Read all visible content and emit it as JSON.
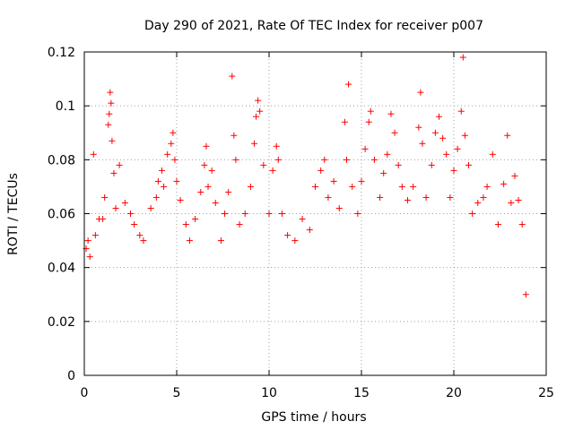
{
  "chart_data": {
    "type": "scatter",
    "title": "Day 290 of 2021, Rate Of TEC Index for receiver p007",
    "xlabel": "GPS time / hours",
    "ylabel": "ROTI / TECUs",
    "xlim": [
      0,
      25
    ],
    "ylim": [
      0,
      0.12
    ],
    "xticks": [
      "0",
      "5",
      "10",
      "15",
      "20",
      "25"
    ],
    "yticks": [
      "0",
      "0.02",
      "0.04",
      "0.06",
      "0.08",
      "0.1",
      "0.12"
    ],
    "grid": true,
    "marker": "+",
    "color": "#ff0000",
    "series": [
      {
        "name": "",
        "points": [
          [
            0.1,
            0.047
          ],
          [
            0.2,
            0.05
          ],
          [
            0.3,
            0.044
          ],
          [
            0.5,
            0.082
          ],
          [
            0.6,
            0.052
          ],
          [
            0.8,
            0.058
          ],
          [
            1.0,
            0.058
          ],
          [
            1.1,
            0.066
          ],
          [
            1.3,
            0.093
          ],
          [
            1.35,
            0.097
          ],
          [
            1.4,
            0.105
          ],
          [
            1.45,
            0.101
          ],
          [
            1.5,
            0.087
          ],
          [
            1.6,
            0.075
          ],
          [
            1.7,
            0.062
          ],
          [
            1.9,
            0.078
          ],
          [
            2.2,
            0.064
          ],
          [
            2.5,
            0.06
          ],
          [
            2.7,
            0.056
          ],
          [
            3.0,
            0.052
          ],
          [
            3.2,
            0.05
          ],
          [
            3.6,
            0.062
          ],
          [
            3.9,
            0.066
          ],
          [
            4.0,
            0.072
          ],
          [
            4.2,
            0.076
          ],
          [
            4.3,
            0.07
          ],
          [
            4.5,
            0.082
          ],
          [
            4.7,
            0.086
          ],
          [
            4.8,
            0.09
          ],
          [
            4.9,
            0.08
          ],
          [
            5.0,
            0.072
          ],
          [
            5.2,
            0.065
          ],
          [
            5.5,
            0.056
          ],
          [
            5.7,
            0.05
          ],
          [
            6.0,
            0.058
          ],
          [
            6.3,
            0.068
          ],
          [
            6.5,
            0.078
          ],
          [
            6.6,
            0.085
          ],
          [
            6.7,
            0.07
          ],
          [
            6.9,
            0.076
          ],
          [
            7.1,
            0.064
          ],
          [
            7.4,
            0.05
          ],
          [
            7.6,
            0.06
          ],
          [
            7.8,
            0.068
          ],
          [
            8.0,
            0.111
          ],
          [
            8.1,
            0.089
          ],
          [
            8.2,
            0.08
          ],
          [
            8.4,
            0.056
          ],
          [
            8.7,
            0.06
          ],
          [
            9.0,
            0.07
          ],
          [
            9.2,
            0.086
          ],
          [
            9.3,
            0.096
          ],
          [
            9.4,
            0.102
          ],
          [
            9.5,
            0.098
          ],
          [
            9.7,
            0.078
          ],
          [
            10.0,
            0.06
          ],
          [
            10.2,
            0.076
          ],
          [
            10.4,
            0.085
          ],
          [
            10.5,
            0.08
          ],
          [
            10.7,
            0.06
          ],
          [
            11.0,
            0.052
          ],
          [
            11.4,
            0.05
          ],
          [
            11.8,
            0.058
          ],
          [
            12.2,
            0.054
          ],
          [
            12.5,
            0.07
          ],
          [
            12.8,
            0.076
          ],
          [
            13.0,
            0.08
          ],
          [
            13.2,
            0.066
          ],
          [
            13.5,
            0.072
          ],
          [
            13.8,
            0.062
          ],
          [
            14.1,
            0.094
          ],
          [
            14.2,
            0.08
          ],
          [
            14.3,
            0.108
          ],
          [
            14.5,
            0.07
          ],
          [
            14.8,
            0.06
          ],
          [
            15.0,
            0.072
          ],
          [
            15.2,
            0.084
          ],
          [
            15.4,
            0.094
          ],
          [
            15.5,
            0.098
          ],
          [
            15.7,
            0.08
          ],
          [
            16.0,
            0.066
          ],
          [
            16.2,
            0.075
          ],
          [
            16.4,
            0.082
          ],
          [
            16.6,
            0.097
          ],
          [
            16.8,
            0.09
          ],
          [
            17.0,
            0.078
          ],
          [
            17.2,
            0.07
          ],
          [
            17.5,
            0.065
          ],
          [
            17.8,
            0.07
          ],
          [
            18.1,
            0.092
          ],
          [
            18.2,
            0.105
          ],
          [
            18.3,
            0.086
          ],
          [
            18.5,
            0.066
          ],
          [
            18.8,
            0.078
          ],
          [
            19.0,
            0.09
          ],
          [
            19.2,
            0.096
          ],
          [
            19.4,
            0.088
          ],
          [
            19.6,
            0.082
          ],
          [
            19.8,
            0.066
          ],
          [
            20.0,
            0.076
          ],
          [
            20.2,
            0.084
          ],
          [
            20.4,
            0.098
          ],
          [
            20.5,
            0.118
          ],
          [
            20.6,
            0.089
          ],
          [
            20.8,
            0.078
          ],
          [
            21.0,
            0.06
          ],
          [
            21.3,
            0.064
          ],
          [
            21.6,
            0.066
          ],
          [
            21.8,
            0.07
          ],
          [
            22.1,
            0.082
          ],
          [
            22.4,
            0.056
          ],
          [
            22.7,
            0.071
          ],
          [
            22.9,
            0.089
          ],
          [
            23.1,
            0.064
          ],
          [
            23.3,
            0.074
          ],
          [
            23.5,
            0.065
          ],
          [
            23.7,
            0.056
          ],
          [
            23.9,
            0.03
          ]
        ]
      }
    ]
  }
}
